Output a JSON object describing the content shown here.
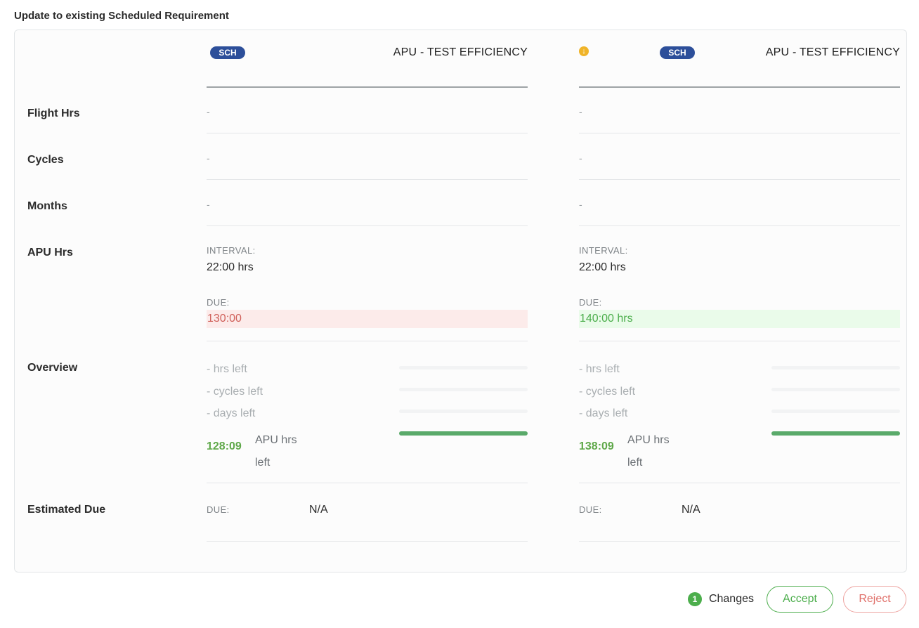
{
  "page_title": "Update to existing Scheduled Requirement",
  "rows": {
    "flight_hrs": "Flight Hrs",
    "cycles": "Cycles",
    "months": "Months",
    "apu_hrs": "APU Hrs",
    "overview": "Overview",
    "estimated_due": "Estimated Due"
  },
  "left": {
    "badge": "SCH",
    "title": "APU - TEST EFFICIENCY",
    "flight_hrs": "-",
    "cycles": "-",
    "months": "-",
    "interval_label": "INTERVAL:",
    "interval_value": "22:00 hrs",
    "due_label": "DUE:",
    "due_value": "130:00",
    "overview": {
      "hrs_left": "-  hrs left",
      "cycles_left": "-  cycles left",
      "days_left": "-  days left",
      "apu_value": "128:09",
      "apu_text_1": "APU hrs",
      "apu_text_2": "left"
    },
    "est_due_label": "DUE:",
    "est_due_value": "N/A"
  },
  "right": {
    "badge": "SCH",
    "change_icon": "arrow-down-circle-icon",
    "title": "APU - TEST EFFICIENCY",
    "flight_hrs": "-",
    "cycles": "-",
    "months": "-",
    "interval_label": "INTERVAL:",
    "interval_value": "22:00 hrs",
    "due_label": "DUE:",
    "due_value": "140:00 hrs",
    "overview": {
      "hrs_left": "-  hrs left",
      "cycles_left": "-  cycles left",
      "days_left": "-  days left",
      "apu_value": "138:09",
      "apu_text_1": "APU hrs",
      "apu_text_2": "left"
    },
    "est_due_label": "DUE:",
    "est_due_value": "N/A"
  },
  "footer": {
    "changes_count": "1",
    "changes_label": "Changes",
    "accept_label": "Accept",
    "reject_label": "Reject"
  },
  "colors": {
    "badge": "#2d4f9a",
    "accent_green": "#4cae4c",
    "reject_red": "#e0706a",
    "warning": "#f0b429"
  }
}
